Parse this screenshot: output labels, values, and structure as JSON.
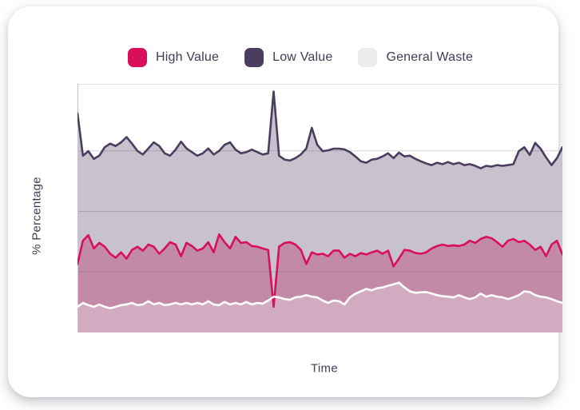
{
  "legend": {
    "items": [
      {
        "label": "High Value",
        "color": "#d8105c"
      },
      {
        "label": "Low Value",
        "color": "#4a3d5e"
      },
      {
        "label": "General Waste",
        "color": "#ececec"
      }
    ]
  },
  "colors": {
    "text": "#3f3d56",
    "axis_line": "#c7c5cc",
    "plot_top_border": "#e4e2e8",
    "gridline": "rgba(90,80,100,0.25)",
    "band_low_value": "#c8c1ce",
    "band_high_value": "#c38aa7",
    "band_general_waste": "#d3abc1"
  },
  "chart_data": {
    "type": "area",
    "title": "",
    "xlabel": "Time",
    "ylabel": "% Percentage",
    "ylim": [
      0,
      100
    ],
    "x": "time index 0-89, unlabeled axis",
    "grid": true,
    "gridline_values": [
      25,
      50,
      75
    ],
    "legend_position": "top",
    "series": [
      {
        "name": "Low Value",
        "color": "#4a3d5e",
        "fill": "#c8c1ce",
        "values": [
          90.5,
          73.0,
          74.9,
          71.7,
          73.0,
          76.5,
          78.0,
          77.0,
          78.5,
          80.7,
          78.0,
          75.0,
          73.5,
          76.0,
          78.5,
          77.0,
          74.0,
          73.0,
          75.5,
          78.8,
          76.0,
          74.5,
          73.0,
          74.0,
          76.0,
          73.5,
          75.0,
          77.5,
          78.5,
          75.5,
          74.0,
          74.5,
          75.5,
          74.5,
          73.5,
          74.0,
          99.5,
          73.0,
          71.4,
          71.0,
          72.0,
          73.5,
          76.0,
          84.5,
          77.5,
          74.9,
          75.2,
          75.9,
          75.9,
          75.6,
          74.5,
          72.7,
          70.7,
          70.1,
          71.4,
          71.7,
          72.7,
          74.0,
          72.0,
          74.3,
          72.7,
          73.0,
          71.7,
          70.7,
          69.8,
          69.1,
          70.1,
          69.5,
          70.4,
          69.5,
          70.1,
          69.1,
          69.5,
          68.8,
          67.8,
          68.8,
          68.5,
          69.1,
          68.8,
          69.1,
          69.5,
          74.9,
          76.5,
          73.3,
          78.3,
          75.9,
          72.3,
          69.1,
          72.0,
          76.5
        ]
      },
      {
        "name": "High Value",
        "color": "#d8105c",
        "fill": "#c38aa7",
        "values": [
          28.3,
          37.9,
          40.2,
          34.7,
          37.0,
          35.4,
          32.5,
          30.9,
          33.1,
          30.5,
          34.1,
          35.4,
          33.8,
          36.3,
          35.4,
          32.5,
          34.7,
          37.3,
          36.3,
          31.5,
          37.0,
          35.7,
          33.8,
          34.7,
          37.3,
          33.1,
          40.5,
          37.3,
          34.7,
          39.5,
          37.0,
          37.3,
          35.7,
          35.4,
          34.7,
          34.1,
          10.6,
          35.4,
          37.0,
          37.3,
          36.3,
          34.1,
          28.3,
          33.1,
          32.2,
          32.5,
          31.5,
          33.8,
          33.8,
          30.9,
          32.5,
          31.5,
          32.8,
          32.2,
          33.1,
          33.8,
          32.5,
          33.8,
          27.3,
          30.5,
          34.1,
          33.8,
          32.8,
          32.5,
          33.1,
          34.7,
          35.7,
          36.3,
          35.7,
          36.0,
          35.7,
          36.3,
          37.9,
          37.0,
          38.6,
          39.5,
          38.9,
          37.3,
          35.4,
          37.9,
          38.6,
          37.3,
          37.9,
          36.3,
          34.1,
          35.4,
          31.5,
          36.3,
          37.9,
          32.2
        ]
      },
      {
        "name": "General Waste",
        "color": "#ffffff",
        "fill": "#d3abc1",
        "values": [
          10.6,
          12.2,
          11.3,
          10.6,
          11.6,
          10.6,
          10.0,
          10.6,
          11.3,
          11.6,
          12.2,
          11.3,
          11.6,
          12.9,
          11.6,
          12.2,
          11.3,
          11.6,
          12.2,
          11.6,
          12.2,
          11.6,
          12.2,
          11.6,
          12.9,
          11.6,
          11.3,
          12.6,
          11.6,
          12.2,
          11.6,
          12.6,
          11.6,
          12.2,
          11.9,
          13.2,
          14.8,
          14.5,
          13.8,
          13.5,
          14.5,
          14.8,
          15.4,
          14.8,
          14.5,
          13.2,
          12.2,
          13.2,
          12.9,
          11.6,
          14.5,
          16.0,
          17.0,
          18.0,
          17.4,
          18.3,
          18.6,
          19.3,
          19.9,
          20.6,
          18.6,
          17.0,
          16.4,
          16.6,
          16.7,
          16.1,
          15.4,
          15.0,
          14.8,
          14.5,
          15.4,
          14.5,
          13.8,
          14.5,
          16.1,
          14.8,
          15.4,
          14.8,
          14.5,
          13.8,
          14.5,
          15.4,
          17.0,
          16.7,
          15.4,
          14.8,
          14.5,
          13.8,
          12.9,
          12.2
        ]
      }
    ]
  }
}
